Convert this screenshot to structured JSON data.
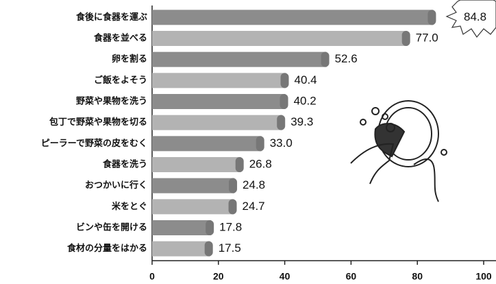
{
  "chart_data": {
    "type": "bar",
    "orientation": "horizontal",
    "categories": [
      "食後に食器を運ぶ",
      "食器を並べる",
      "卵を割る",
      "ご飯をよそう",
      "野菜や果物を洗う",
      "包丁で野菜や果物を切る",
      "ピーラーで野菜の皮をむく",
      "食器を洗う",
      "おつかいに行く",
      "米をとぐ",
      "ビンや缶を開ける",
      "食材の分量をはかる"
    ],
    "values": [
      84.8,
      77.0,
      52.6,
      40.4,
      40.2,
      39.3,
      33.0,
      26.8,
      24.8,
      24.7,
      17.8,
      17.5
    ],
    "value_labels": [
      "84.8",
      "77.0",
      "52.6",
      "40.4",
      "40.2",
      "39.3",
      "33.0",
      "26.8",
      "24.8",
      "24.7",
      "17.8",
      "17.5"
    ],
    "colors": [
      "#8c8c8c",
      "#b3b3b3"
    ],
    "xlim": [
      0,
      100
    ],
    "xticks": [
      0,
      20,
      40,
      60,
      80,
      100
    ]
  }
}
